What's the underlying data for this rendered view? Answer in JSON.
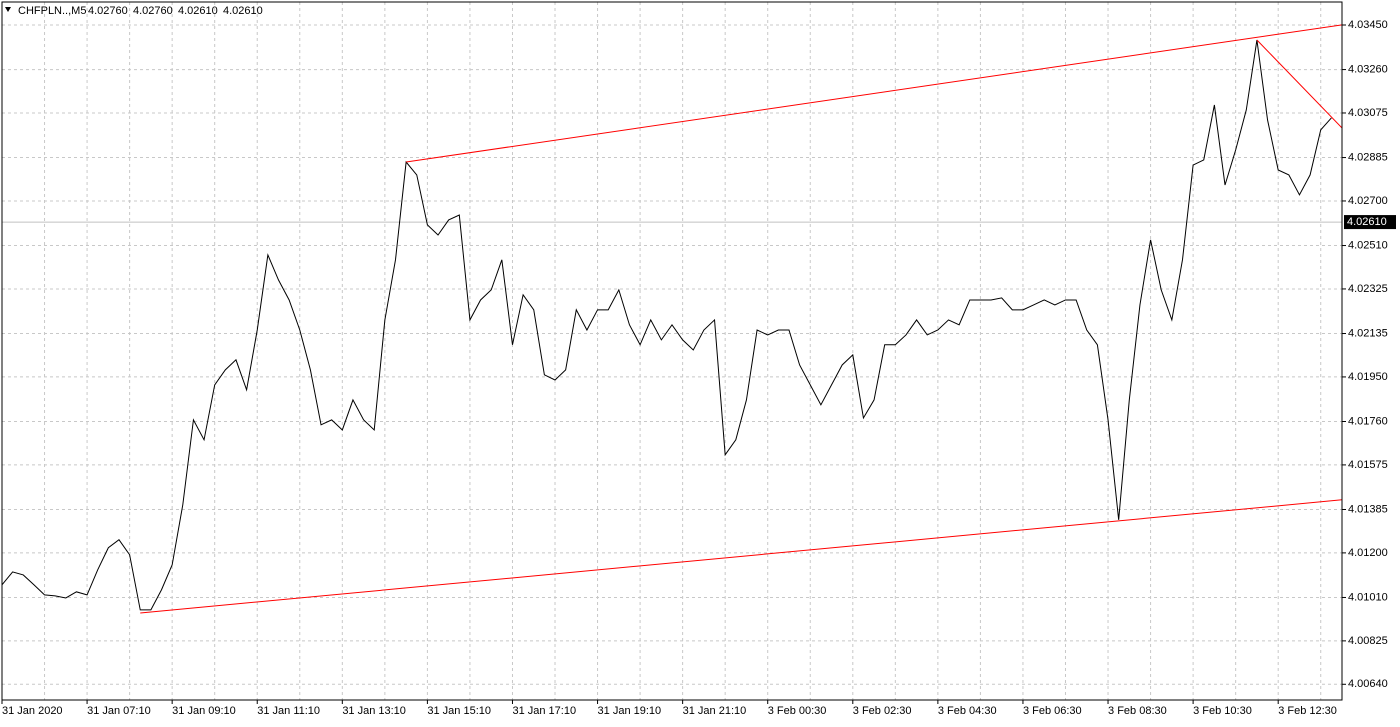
{
  "chart_data": {
    "type": "line",
    "symbol": "CHFPLN..,M5",
    "ohlc": [
      "4.02760",
      "4.02760",
      "4.02610",
      "4.02610"
    ],
    "categories": [
      "31 Jan 2020",
      null,
      null,
      null,
      null,
      null,
      null,
      null,
      "31 Jan 07:10",
      null,
      null,
      null,
      null,
      null,
      null,
      null,
      "31 Jan 09:10",
      null,
      null,
      null,
      null,
      null,
      null,
      null,
      "31 Jan 11:10",
      null,
      null,
      null,
      null,
      null,
      null,
      null,
      "31 Jan 13:10",
      null,
      null,
      null,
      null,
      null,
      null,
      null,
      "31 Jan 15:10",
      null,
      null,
      null,
      null,
      null,
      null,
      null,
      "31 Jan 17:10",
      null,
      null,
      null,
      null,
      null,
      null,
      null,
      "31 Jan 19:10",
      null,
      null,
      null,
      null,
      null,
      null,
      null,
      "31 Jan 21:10",
      null,
      null,
      null,
      null,
      null,
      null,
      null,
      "3 Feb 00:30",
      null,
      null,
      null,
      null,
      null,
      null,
      null,
      "3 Feb 02:30",
      null,
      null,
      null,
      null,
      null,
      null,
      null,
      "3 Feb 04:30",
      null,
      null,
      null,
      null,
      null,
      null,
      null,
      "3 Feb 06:30",
      null,
      null,
      null,
      null,
      null,
      null,
      null,
      "3 Feb 08:30",
      null,
      null,
      null,
      null,
      null,
      null,
      null,
      "3 Feb 10:30",
      null,
      null,
      null,
      null,
      null,
      null,
      null,
      "3 Feb 12:30",
      null,
      null,
      null,
      null,
      null
    ],
    "values": [
      4.01064,
      4.01119,
      4.01106,
      4.01064,
      4.01021,
      4.01017,
      4.01008,
      4.01034,
      4.01021,
      4.01128,
      4.01222,
      4.01256,
      4.01192,
      4.00957,
      4.00957,
      4.01043,
      4.01149,
      4.01405,
      4.01767,
      4.01682,
      4.01916,
      4.0198,
      4.02023,
      4.01895,
      4.0215,
      4.0247,
      4.02363,
      4.02278,
      4.0215,
      4.0198,
      4.01746,
      4.01767,
      4.01724,
      4.01852,
      4.01767,
      4.01724,
      4.02193,
      4.02449,
      4.02866,
      4.02811,
      4.02598,
      4.02555,
      4.02619,
      4.0264,
      4.02193,
      4.02278,
      4.02321,
      4.02449,
      4.02087,
      4.023,
      4.02236,
      4.01959,
      4.01937,
      4.0198,
      4.02236,
      4.0215,
      4.02236,
      4.02236,
      4.02321,
      4.02172,
      4.02087,
      4.02193,
      4.02108,
      4.02172,
      4.02108,
      4.02065,
      4.0215,
      4.02193,
      4.01618,
      4.01682,
      4.01852,
      4.0215,
      4.02129,
      4.0215,
      4.0215,
      4.02001,
      4.01916,
      4.01831,
      4.01916,
      4.02001,
      4.02044,
      4.01775,
      4.01852,
      4.02087,
      4.02087,
      4.02129,
      4.02193,
      4.02129,
      4.0215,
      4.02193,
      4.02172,
      4.02278,
      4.02278,
      4.02278,
      4.02287,
      4.02236,
      4.02236,
      4.02257,
      4.02278,
      4.02257,
      4.02278,
      4.02278,
      4.0215,
      4.02087,
      4.01767,
      4.01341,
      4.01852,
      4.02257,
      4.02534,
      4.02321,
      4.02193,
      4.02449,
      4.02853,
      4.02875,
      4.03109,
      4.02768,
      4.02917,
      4.03088,
      4.03386,
      4.03045,
      4.02832,
      4.02811,
      4.02726,
      4.02811,
      4.03003,
      4.03054
    ],
    "color": "#000000",
    "ylim": [
      4.00573,
      4.03548
    ],
    "yticks": [
      {
        "value": 4.0345,
        "label": "4.03450"
      },
      {
        "value": 4.0326,
        "label": "4.03260"
      },
      4.03075,
      4.02885,
      {
        "value": 4.027,
        "label": "4.02700"
      },
      {
        "value": 4.0251,
        "label": "4.02510"
      },
      4.02325,
      4.02135,
      {
        "value": 4.0195,
        "label": "4.01950"
      },
      {
        "value": 4.0176,
        "label": "4.01760"
      },
      4.01575,
      4.01385,
      {
        "value": 4.012,
        "label": "4.01200"
      },
      {
        "value": 4.0101,
        "label": "4.01010"
      },
      4.00825,
      {
        "value": 4.0064,
        "label": "4.00640"
      }
    ],
    "last_price": {
      "value": 4.0261,
      "label": "4.02610"
    },
    "grid": true,
    "trendlines": [
      {
        "color": "#ff0000",
        "points": [
          [
            38,
            4.02866
          ],
          [
            125,
            4.03444
          ]
        ],
        "extend": true
      },
      {
        "color": "#ff0000",
        "points": [
          [
            13,
            4.00944
          ],
          [
            125,
            4.01422
          ]
        ],
        "extend": true
      },
      {
        "color": "#ff0000",
        "points": [
          [
            118,
            4.03386
          ],
          [
            125,
            4.03058
          ]
        ],
        "extend": true
      }
    ]
  }
}
